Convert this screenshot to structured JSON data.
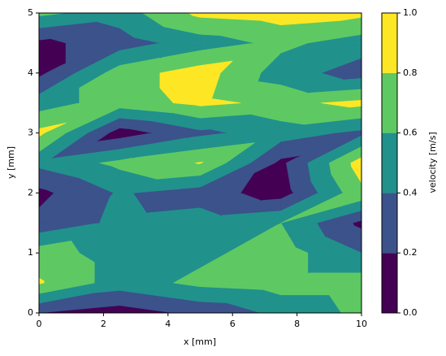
{
  "chart_data": {
    "type": "contourf",
    "xlabel": "x [mm]",
    "ylabel": "y [mm]",
    "colorbar_label": "velocity [m/s]",
    "x": [
      0,
      2.5,
      5,
      7.5,
      10
    ],
    "y": [
      0,
      0.5,
      1,
      1.5,
      2,
      2.5,
      3,
      3.5,
      4,
      4.5,
      5
    ],
    "z": [
      [
        0.2,
        0.1,
        0.25,
        0.45,
        0.65
      ],
      [
        0.82,
        0.5,
        0.65,
        0.7,
        0.7
      ],
      [
        0.7,
        0.5,
        0.55,
        0.7,
        0.4
      ],
      [
        0.25,
        0.45,
        0.5,
        0.6,
        0.15
      ],
      [
        0.15,
        0.42,
        0.3,
        0.1,
        0.75
      ],
      [
        0.45,
        0.65,
        0.81,
        0.15,
        0.9
      ],
      [
        0.85,
        0.1,
        0.35,
        0.5,
        0.35
      ],
      [
        0.5,
        0.7,
        0.85,
        0.75,
        0.85
      ],
      [
        0.15,
        0.7,
        0.9,
        0.5,
        0.3
      ],
      [
        0.15,
        0.3,
        0.5,
        0.65,
        0.5
      ],
      [
        0.65,
        0.5,
        0.85,
        0.9,
        0.85
      ]
    ],
    "levels": [
      {
        "value": 0,
        "label": "0.0"
      },
      {
        "value": 0.2,
        "label": "0.2"
      },
      {
        "value": 0.4,
        "label": "0.4"
      },
      {
        "value": 0.6,
        "label": "0.6"
      },
      {
        "value": 0.8,
        "label": "0.8"
      },
      {
        "value": 1,
        "label": "1.0"
      }
    ],
    "colors": [
      "#440154",
      "#3b528b",
      "#21918c",
      "#5ec962",
      "#fde725"
    ],
    "xlim": [
      0,
      10
    ],
    "ylim": [
      0,
      5
    ],
    "xticks": [
      0,
      2,
      4,
      6,
      8,
      10
    ],
    "yticks": [
      0,
      1,
      2,
      3,
      4,
      5
    ]
  }
}
